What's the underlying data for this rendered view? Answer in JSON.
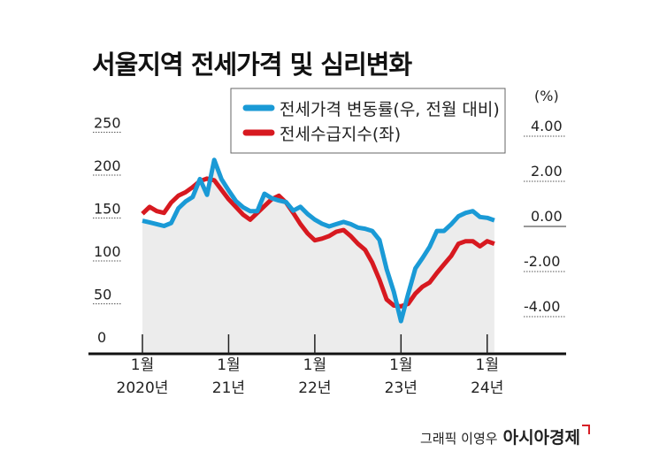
{
  "title": "서울지역 전세가격 및 심리변화",
  "credit": {
    "author": "그래픽 이영우",
    "brand": "아시아경제"
  },
  "colors": {
    "price": "#1a9ad6",
    "index": "#d71920",
    "fill": "#ececec"
  },
  "chart_data": {
    "type": "line",
    "title": "서울지역 전세가격 및 심리변화",
    "x_start": "2020-01",
    "x_ticks": [
      {
        "line1": "1월",
        "line2": "2020년",
        "month": 0
      },
      {
        "line1": "1월",
        "line2": "21년",
        "month": 12
      },
      {
        "line1": "1월",
        "line2": "22년",
        "month": 24
      },
      {
        "line1": "1월",
        "line2": "23년",
        "month": 36
      },
      {
        "line1": "1월",
        "line2": "24년",
        "month": 48
      }
    ],
    "left_axis": {
      "ticks": [
        "250",
        "200",
        "150",
        "100",
        "50",
        "0"
      ],
      "values": [
        250,
        200,
        150,
        100,
        50,
        0
      ],
      "ylim": [
        0,
        250
      ]
    },
    "right_axis": {
      "unit": "(%)",
      "ticks": [
        "4.00",
        "2.00",
        "0.00",
        "-2.00",
        "-4.00"
      ],
      "values": [
        4,
        2,
        0,
        -2,
        -4
      ]
    },
    "legend": [
      "전세가격 변동률(우, 전월 대비)",
      "전세수급지수(좌)"
    ],
    "legend_placement": "top-center",
    "series": [
      {
        "name": "전세가격 변동률(우, 전월 대비)",
        "axis": "right",
        "values": [
          0.25,
          0.18,
          0.1,
          0.02,
          0.15,
          0.8,
          1.1,
          1.3,
          2.1,
          1.4,
          2.95,
          2.1,
          1.6,
          1.13,
          0.85,
          0.68,
          0.68,
          1.45,
          1.25,
          1.15,
          1.08,
          0.7,
          0.87,
          0.55,
          0.3,
          0.12,
          0.0,
          0.1,
          0.2,
          0.1,
          -0.05,
          -0.1,
          -0.2,
          -0.6,
          -1.9,
          -2.9,
          -4.2,
          -3.0,
          -1.86,
          -1.4,
          -0.9,
          -0.2,
          -0.2,
          0.1,
          0.45,
          0.6,
          0.68,
          0.42,
          0.38,
          0.27
        ]
      },
      {
        "name": "전세수급지수(좌)",
        "axis": "left",
        "values": [
          155,
          163,
          158,
          156,
          168,
          176,
          180,
          186,
          193,
          196,
          194,
          183,
          172,
          163,
          154,
          148,
          156,
          164,
          172,
          176,
          168,
          156,
          143,
          132,
          124,
          126,
          129,
          134,
          136,
          129,
          120,
          113,
          98,
          78,
          55,
          48,
          47,
          50,
          62,
          70,
          75,
          86,
          96,
          106,
          120,
          123,
          123,
          117,
          123,
          120
        ]
      }
    ]
  }
}
